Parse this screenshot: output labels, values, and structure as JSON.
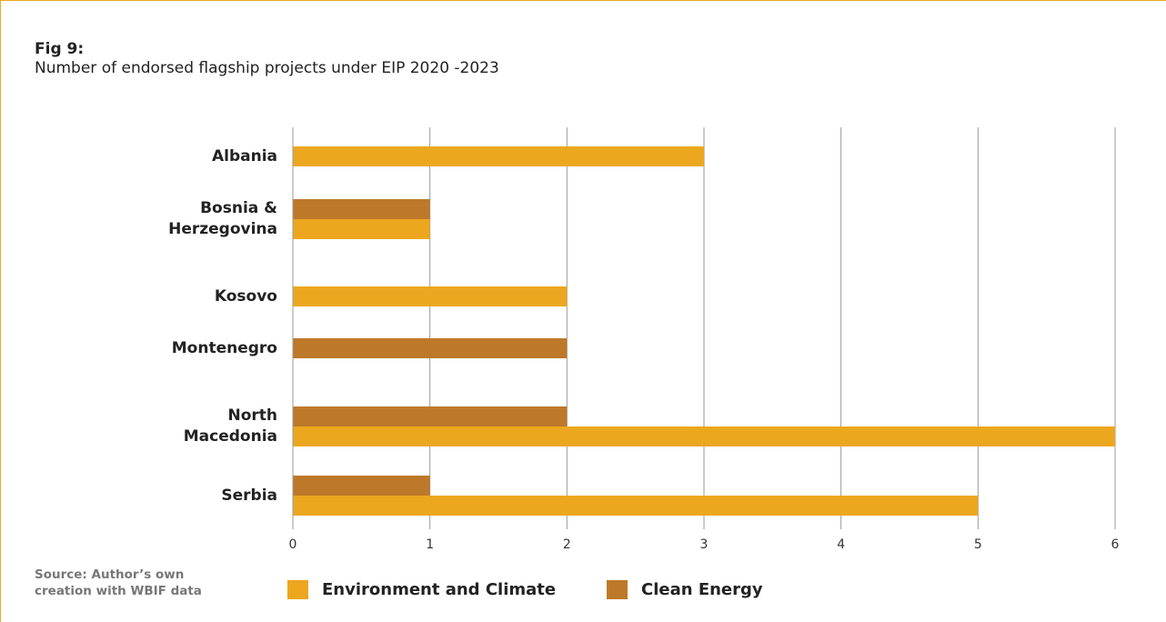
{
  "figure": {
    "label": "Fig 9:",
    "title": "Number of endorsed flagship projects under EIP 2020 -2023",
    "source": "Source: Author’s own creation with WBIF data"
  },
  "colors": {
    "accent_border": "#e9a920",
    "environment": "#eca71f",
    "clean_energy": "#bd782a",
    "gridline": "#9a9a9a"
  },
  "chart_data": {
    "type": "bar",
    "orientation": "horizontal",
    "categories": [
      "Albania",
      "Bosnia &\nHerzegovina",
      "Kosovo",
      "Montenegro",
      "North\nMacedonia",
      "Serbia"
    ],
    "series": [
      {
        "name": "Environment and Climate",
        "values": [
          3,
          1,
          2,
          0,
          6,
          5
        ]
      },
      {
        "name": "Clean Energy",
        "values": [
          0,
          1,
          0,
          2,
          2,
          1
        ]
      }
    ],
    "xlim": [
      0,
      6
    ],
    "xticks": [
      "0",
      "1",
      "2",
      "3",
      "4",
      "5",
      "6"
    ],
    "grid": true,
    "legend": "bottom"
  }
}
